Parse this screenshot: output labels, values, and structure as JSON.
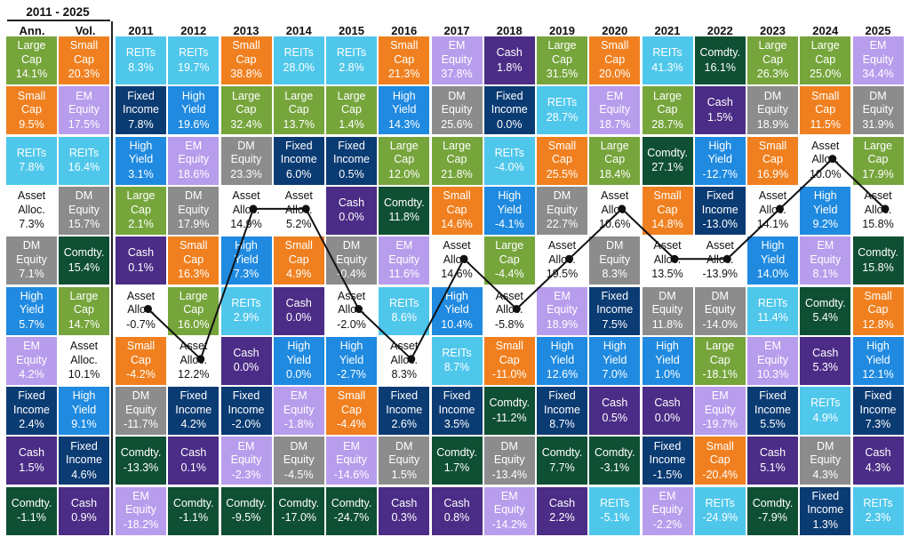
{
  "header": {
    "period": "2011 - 2025",
    "ann_label": "Ann.",
    "vol_label": "Vol."
  },
  "colors": {
    "Large Cap": "#76a53c",
    "Small Cap": "#f0801f",
    "REITs": "#4fc7eb",
    "EM Equity": "#b89ded",
    "Cash": "#4b2c86",
    "Fixed Income": "#0b3b73",
    "High Yield": "#1f8ae0",
    "DM Equity": "#8c8c8c",
    "Comdty.": "#0f4f34",
    "Asset Alloc.": "#ffffff"
  },
  "chart_data": {
    "type": "table",
    "years": [
      "2011",
      "2012",
      "2013",
      "2014",
      "2015",
      "2016",
      "2017",
      "2018",
      "2019",
      "2020",
      "2021",
      "2022",
      "2023",
      "2024",
      "2025"
    ],
    "summary": {
      "ann": [
        {
          "asset": "Large Cap",
          "value": "14.1%"
        },
        {
          "asset": "Small Cap",
          "value": "9.5%"
        },
        {
          "asset": "REITs",
          "value": "7.8%"
        },
        {
          "asset": "Asset Alloc.",
          "value": "7.3%"
        },
        {
          "asset": "DM Equity",
          "value": "7.1%"
        },
        {
          "asset": "High Yield",
          "value": "5.7%"
        },
        {
          "asset": "EM Equity",
          "value": "4.2%"
        },
        {
          "asset": "Fixed Income",
          "value": "2.4%"
        },
        {
          "asset": "Cash",
          "value": "1.5%"
        },
        {
          "asset": "Comdty.",
          "value": "-1.1%"
        }
      ],
      "vol": [
        {
          "asset": "Small Cap",
          "value": "20.3%"
        },
        {
          "asset": "EM Equity",
          "value": "17.5%"
        },
        {
          "asset": "REITs",
          "value": "16.4%"
        },
        {
          "asset": "DM Equity",
          "value": "15.7%"
        },
        {
          "asset": "Comdty.",
          "value": "15.4%"
        },
        {
          "asset": "Large Cap",
          "value": "14.7%"
        },
        {
          "asset": "Asset Alloc.",
          "value": "10.1%"
        },
        {
          "asset": "High Yield",
          "value": "9.1%"
        },
        {
          "asset": "Fixed Income",
          "value": "4.6%"
        },
        {
          "asset": "Cash",
          "value": "0.9%"
        }
      ]
    },
    "returns": [
      [
        {
          "asset": "REITs",
          "value": "8.3%"
        },
        {
          "asset": "Fixed Income",
          "value": "7.8%"
        },
        {
          "asset": "High Yield",
          "value": "3.1%"
        },
        {
          "asset": "Large Cap",
          "value": "2.1%"
        },
        {
          "asset": "Cash",
          "value": "0.1%"
        },
        {
          "asset": "Asset Alloc.",
          "value": "-0.7%"
        },
        {
          "asset": "Small Cap",
          "value": "-4.2%"
        },
        {
          "asset": "DM Equity",
          "value": "-11.7%"
        },
        {
          "asset": "Comdty.",
          "value": "-13.3%"
        },
        {
          "asset": "EM Equity",
          "value": "-18.2%"
        }
      ],
      [
        {
          "asset": "REITs",
          "value": "19.7%"
        },
        {
          "asset": "High Yield",
          "value": "19.6%"
        },
        {
          "asset": "EM Equity",
          "value": "18.6%"
        },
        {
          "asset": "DM Equity",
          "value": "17.9%"
        },
        {
          "asset": "Small Cap",
          "value": "16.3%"
        },
        {
          "asset": "Large Cap",
          "value": "16.0%"
        },
        {
          "asset": "Asset Alloc.",
          "value": "12.2%"
        },
        {
          "asset": "Fixed Income",
          "value": "4.2%"
        },
        {
          "asset": "Cash",
          "value": "0.1%"
        },
        {
          "asset": "Comdty.",
          "value": "-1.1%"
        }
      ],
      [
        {
          "asset": "Small Cap",
          "value": "38.8%"
        },
        {
          "asset": "Large Cap",
          "value": "32.4%"
        },
        {
          "asset": "DM Equity",
          "value": "23.3%"
        },
        {
          "asset": "Asset Alloc.",
          "value": "14.9%"
        },
        {
          "asset": "High Yield",
          "value": "7.3%"
        },
        {
          "asset": "REITs",
          "value": "2.9%"
        },
        {
          "asset": "Cash",
          "value": "0.0%"
        },
        {
          "asset": "Fixed Income",
          "value": "-2.0%"
        },
        {
          "asset": "EM Equity",
          "value": "-2.3%"
        },
        {
          "asset": "Comdty.",
          "value": "-9.5%"
        }
      ],
      [
        {
          "asset": "REITs",
          "value": "28.0%"
        },
        {
          "asset": "Large Cap",
          "value": "13.7%"
        },
        {
          "asset": "Fixed Income",
          "value": "6.0%"
        },
        {
          "asset": "Asset Alloc.",
          "value": "5.2%"
        },
        {
          "asset": "Small Cap",
          "value": "4.9%"
        },
        {
          "asset": "Cash",
          "value": "0.0%"
        },
        {
          "asset": "High Yield",
          "value": "0.0%"
        },
        {
          "asset": "EM Equity",
          "value": "-1.8%"
        },
        {
          "asset": "DM Equity",
          "value": "-4.5%"
        },
        {
          "asset": "Comdty.",
          "value": "-17.0%"
        }
      ],
      [
        {
          "asset": "REITs",
          "value": "2.8%"
        },
        {
          "asset": "Large Cap",
          "value": "1.4%"
        },
        {
          "asset": "Fixed Income",
          "value": "0.5%"
        },
        {
          "asset": "Cash",
          "value": "0.0%"
        },
        {
          "asset": "DM Equity",
          "value": "-0.4%"
        },
        {
          "asset": "Asset Alloc.",
          "value": "-2.0%"
        },
        {
          "asset": "High Yield",
          "value": "-2.7%"
        },
        {
          "asset": "Small Cap",
          "value": "-4.4%"
        },
        {
          "asset": "EM Equity",
          "value": "-14.6%"
        },
        {
          "asset": "Comdty.",
          "value": "-24.7%"
        }
      ],
      [
        {
          "asset": "Small Cap",
          "value": "21.3%"
        },
        {
          "asset": "High Yield",
          "value": "14.3%"
        },
        {
          "asset": "Large Cap",
          "value": "12.0%"
        },
        {
          "asset": "Comdty.",
          "value": "11.8%"
        },
        {
          "asset": "EM Equity",
          "value": "11.6%"
        },
        {
          "asset": "REITs",
          "value": "8.6%"
        },
        {
          "asset": "Asset Alloc.",
          "value": "8.3%"
        },
        {
          "asset": "Fixed Income",
          "value": "2.6%"
        },
        {
          "asset": "DM Equity",
          "value": "1.5%"
        },
        {
          "asset": "Cash",
          "value": "0.3%"
        }
      ],
      [
        {
          "asset": "EM Equity",
          "value": "37.8%"
        },
        {
          "asset": "DM Equity",
          "value": "25.6%"
        },
        {
          "asset": "Large Cap",
          "value": "21.8%"
        },
        {
          "asset": "Small Cap",
          "value": "14.6%"
        },
        {
          "asset": "Asset Alloc.",
          "value": "14.6%"
        },
        {
          "asset": "High Yield",
          "value": "10.4%"
        },
        {
          "asset": "REITs",
          "value": "8.7%"
        },
        {
          "asset": "Fixed Income",
          "value": "3.5%"
        },
        {
          "asset": "Comdty.",
          "value": "1.7%"
        },
        {
          "asset": "Cash",
          "value": "0.8%"
        }
      ],
      [
        {
          "asset": "Cash",
          "value": "1.8%"
        },
        {
          "asset": "Fixed Income",
          "value": "0.0%"
        },
        {
          "asset": "REITs",
          "value": "-4.0%"
        },
        {
          "asset": "High Yield",
          "value": "-4.1%"
        },
        {
          "asset": "Large Cap",
          "value": "-4.4%"
        },
        {
          "asset": "Asset Alloc.",
          "value": "-5.8%"
        },
        {
          "asset": "Small Cap",
          "value": "-11.0%"
        },
        {
          "asset": "Comdty.",
          "value": "-11.2%"
        },
        {
          "asset": "DM Equity",
          "value": "-13.4%"
        },
        {
          "asset": "EM Equity",
          "value": "-14.2%"
        }
      ],
      [
        {
          "asset": "Large Cap",
          "value": "31.5%"
        },
        {
          "asset": "REITs",
          "value": "28.7%"
        },
        {
          "asset": "Small Cap",
          "value": "25.5%"
        },
        {
          "asset": "DM Equity",
          "value": "22.7%"
        },
        {
          "asset": "Asset Alloc.",
          "value": "19.5%"
        },
        {
          "asset": "EM Equity",
          "value": "18.9%"
        },
        {
          "asset": "High Yield",
          "value": "12.6%"
        },
        {
          "asset": "Fixed Income",
          "value": "8.7%"
        },
        {
          "asset": "Comdty.",
          "value": "7.7%"
        },
        {
          "asset": "Cash",
          "value": "2.2%"
        }
      ],
      [
        {
          "asset": "Small Cap",
          "value": "20.0%"
        },
        {
          "asset": "EM Equity",
          "value": "18.7%"
        },
        {
          "asset": "Large Cap",
          "value": "18.4%"
        },
        {
          "asset": "Asset Alloc.",
          "value": "10.6%"
        },
        {
          "asset": "DM Equity",
          "value": "8.3%"
        },
        {
          "asset": "Fixed Income",
          "value": "7.5%"
        },
        {
          "asset": "High Yield",
          "value": "7.0%"
        },
        {
          "asset": "Cash",
          "value": "0.5%"
        },
        {
          "asset": "Comdty.",
          "value": "-3.1%"
        },
        {
          "asset": "REITs",
          "value": "-5.1%"
        }
      ],
      [
        {
          "asset": "REITs",
          "value": "41.3%"
        },
        {
          "asset": "Large Cap",
          "value": "28.7%"
        },
        {
          "asset": "Comdty.",
          "value": "27.1%"
        },
        {
          "asset": "Small Cap",
          "value": "14.8%"
        },
        {
          "asset": "Asset Alloc.",
          "value": "13.5%"
        },
        {
          "asset": "DM Equity",
          "value": "11.8%"
        },
        {
          "asset": "High Yield",
          "value": "1.0%"
        },
        {
          "asset": "Cash",
          "value": "0.0%"
        },
        {
          "asset": "Fixed Income",
          "value": "-1.5%"
        },
        {
          "asset": "EM Equity",
          "value": "-2.2%"
        }
      ],
      [
        {
          "asset": "Comdty.",
          "value": "16.1%"
        },
        {
          "asset": "Cash",
          "value": "1.5%"
        },
        {
          "asset": "High Yield",
          "value": "-12.7%"
        },
        {
          "asset": "Fixed Income",
          "value": "-13.0%"
        },
        {
          "asset": "Asset Alloc.",
          "value": "-13.9%"
        },
        {
          "asset": "DM Equity",
          "value": "-14.0%"
        },
        {
          "asset": "Large Cap",
          "value": "-18.1%"
        },
        {
          "asset": "EM Equity",
          "value": "-19.7%"
        },
        {
          "asset": "Small Cap",
          "value": "-20.4%"
        },
        {
          "asset": "REITs",
          "value": "-24.9%"
        }
      ],
      [
        {
          "asset": "Large Cap",
          "value": "26.3%"
        },
        {
          "asset": "DM Equity",
          "value": "18.9%"
        },
        {
          "asset": "Small Cap",
          "value": "16.9%"
        },
        {
          "asset": "Asset Alloc.",
          "value": "14.1%"
        },
        {
          "asset": "High Yield",
          "value": "14.0%"
        },
        {
          "asset": "REITs",
          "value": "11.4%"
        },
        {
          "asset": "EM Equity",
          "value": "10.3%"
        },
        {
          "asset": "Fixed Income",
          "value": "5.5%"
        },
        {
          "asset": "Cash",
          "value": "5.1%"
        },
        {
          "asset": "Comdty.",
          "value": "-7.9%"
        }
      ],
      [
        {
          "asset": "Large Cap",
          "value": "25.0%"
        },
        {
          "asset": "Small Cap",
          "value": "11.5%"
        },
        {
          "asset": "Asset Alloc.",
          "value": "10.0%"
        },
        {
          "asset": "High Yield",
          "value": "9.2%"
        },
        {
          "asset": "EM Equity",
          "value": "8.1%"
        },
        {
          "asset": "Comdty.",
          "value": "5.4%"
        },
        {
          "asset": "Cash",
          "value": "5.3%"
        },
        {
          "asset": "REITs",
          "value": "4.9%"
        },
        {
          "asset": "DM Equity",
          "value": "4.3%"
        },
        {
          "asset": "Fixed Income",
          "value": "1.3%"
        }
      ],
      [
        {
          "asset": "EM Equity",
          "value": "34.4%"
        },
        {
          "asset": "DM Equity",
          "value": "31.9%"
        },
        {
          "asset": "Large Cap",
          "value": "17.9%"
        },
        {
          "asset": "Asset Alloc.",
          "value": "15.8%"
        },
        {
          "asset": "Comdty.",
          "value": "15.8%"
        },
        {
          "asset": "Small Cap",
          "value": "12.8%"
        },
        {
          "asset": "High Yield",
          "value": "12.1%"
        },
        {
          "asset": "Fixed Income",
          "value": "7.3%"
        },
        {
          "asset": "Cash",
          "value": "4.3%"
        },
        {
          "asset": "REITs",
          "value": "2.3%"
        }
      ]
    ],
    "line_series": "Asset Alloc."
  }
}
